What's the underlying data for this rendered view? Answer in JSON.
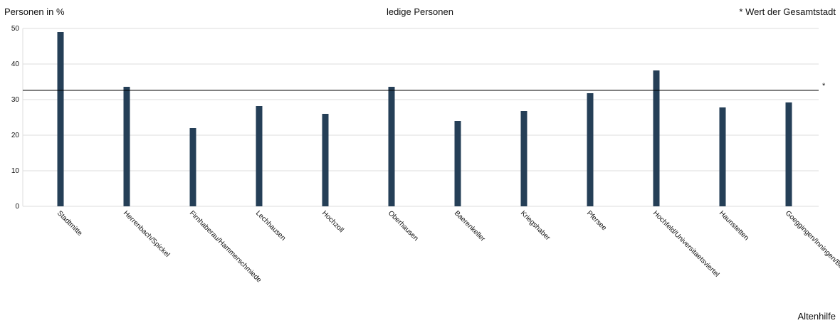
{
  "chart_data": {
    "type": "bar",
    "title": "ledige Personen",
    "y_label": "Personen in %",
    "legend_note": "* Wert der Gesamtstadt",
    "footer": "Altenhilfe",
    "categories": [
      "Stadtmitte",
      "Herrenbach/Spickel",
      "Firnhaberau/Hammerschmiede",
      "Lechhausen",
      "Hochzoll",
      "Oberhausen",
      "Baerenkeller",
      "Kriegshaber",
      "Pfersee",
      "Hochfeld/Universitaetsviertel",
      "Haunstetten",
      "Goeggingen/Inningen/Bergheim"
    ],
    "values": [
      49,
      33.6,
      22,
      28.2,
      26,
      33.6,
      24,
      26.8,
      31.8,
      38.2,
      27.8,
      29.2
    ],
    "color": "#253f57",
    "reference_line": {
      "value": 32.6,
      "label": "*"
    },
    "ylim": [
      0,
      50
    ],
    "yticks": [
      0,
      10,
      20,
      30,
      40,
      50
    ],
    "grid": true
  }
}
